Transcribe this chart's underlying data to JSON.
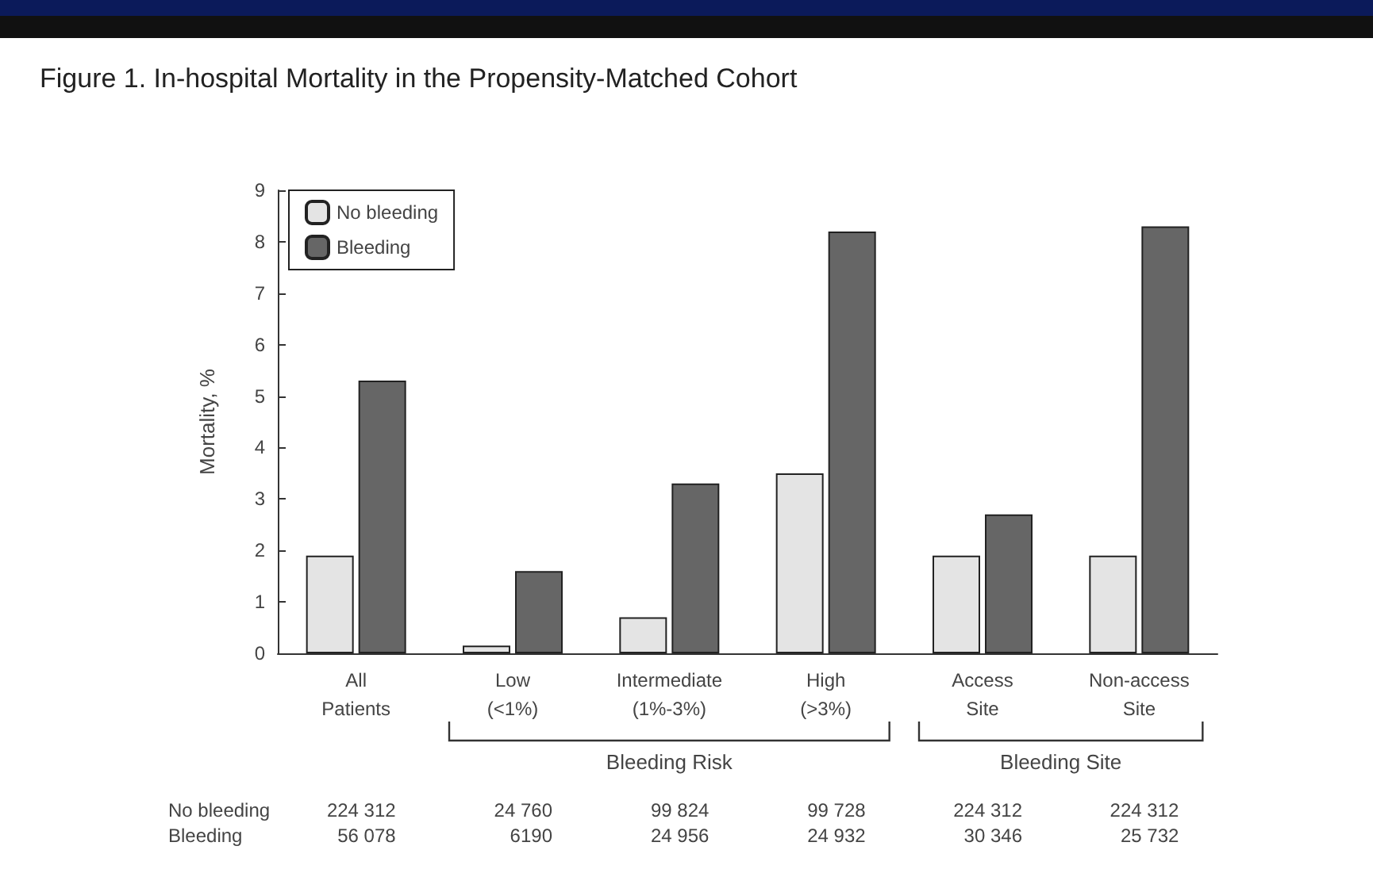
{
  "chart_data": {
    "type": "bar",
    "title": "Figure 1. In-hospital Mortality in the Propensity-Matched Cohort",
    "ylabel": "Mortality, %",
    "categories": [
      "All\nPatients",
      "Low\n(<1%)",
      "Intermediate\n(1%-3%)",
      "High\n(>3%)",
      "Access\nSite",
      "Non-access\nSite"
    ],
    "series": [
      {
        "name": "No bleeding",
        "color": "#e4e4e4",
        "values": [
          1.9,
          0.15,
          0.7,
          3.5,
          1.9,
          1.9
        ]
      },
      {
        "name": "Bleeding",
        "color": "#666666",
        "values": [
          5.3,
          1.6,
          3.3,
          8.2,
          2.7,
          8.3
        ]
      }
    ],
    "ylim": [
      0,
      9
    ],
    "yticks": [
      0,
      1,
      2,
      3,
      4,
      5,
      6,
      7,
      8,
      9
    ],
    "grid": false,
    "legend": "top left",
    "annotations": [
      "Bleeding Risk",
      "Bleeding Site",
      "No bleeding",
      "224 312",
      "24 760",
      "99 824",
      "99 728",
      "224 312",
      "224 312",
      "Bleeding",
      "56 078",
      "6190",
      "24 956",
      "24 932",
      "30 346",
      "25 732"
    ]
  }
}
